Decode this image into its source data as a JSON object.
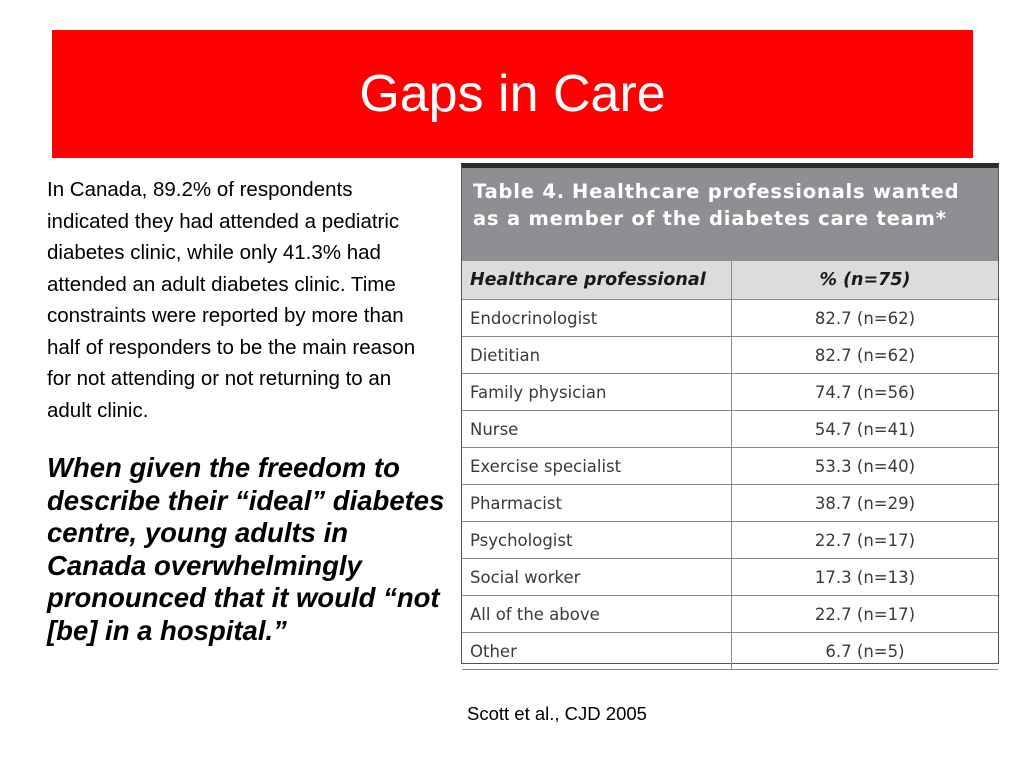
{
  "slide": {
    "title": "Gaps in Care",
    "body_text": "In Canada, 89.2% of respondents indicated they had attended a pediatric diabetes clinic, while only 41.3% had attended an adult diabetes clinic. Time constraints were reported by more than half of responders to be the main reason for not attending or not returning to an adult clinic.",
    "quote_text": "When given the freedom to describe their “ideal” diabetes centre, young adults in Canada overwhelmingly pronounced that it would “not [be] in a hospital.”",
    "citation": "Scott et al., CJD 2005"
  },
  "table": {
    "caption_label": "Table 4.",
    "caption_text": "Healthcare professionals wanted as a member of the diabetes care team*",
    "header_col1": "Healthcare professional",
    "header_col2": "% (n=75)",
    "rows": [
      {
        "professional": "Endocrinologist",
        "value": "82.7 (n=62)"
      },
      {
        "professional": "Dietitian",
        "value": "82.7 (n=62)"
      },
      {
        "professional": "Family physician",
        "value": "74.7 (n=56)"
      },
      {
        "professional": "Nurse",
        "value": "54.7 (n=41)"
      },
      {
        "professional": "Exercise specialist",
        "value": "53.3 (n=40)"
      },
      {
        "professional": "Pharmacist",
        "value": "38.7 (n=29)"
      },
      {
        "professional": "Psychologist",
        "value": "22.7 (n=17)"
      },
      {
        "professional": "Social worker",
        "value": "17.3 (n=13)"
      },
      {
        "professional": "All of the above",
        "value": "22.7 (n=17)"
      },
      {
        "professional": "Other",
        "value": "6.7 (n=5)"
      }
    ]
  },
  "colors": {
    "title_banner": "#ff0000",
    "title_text": "#ffffff",
    "table_caption_bg": "#8e8f92",
    "table_header_bg": "#dcdcdc"
  }
}
